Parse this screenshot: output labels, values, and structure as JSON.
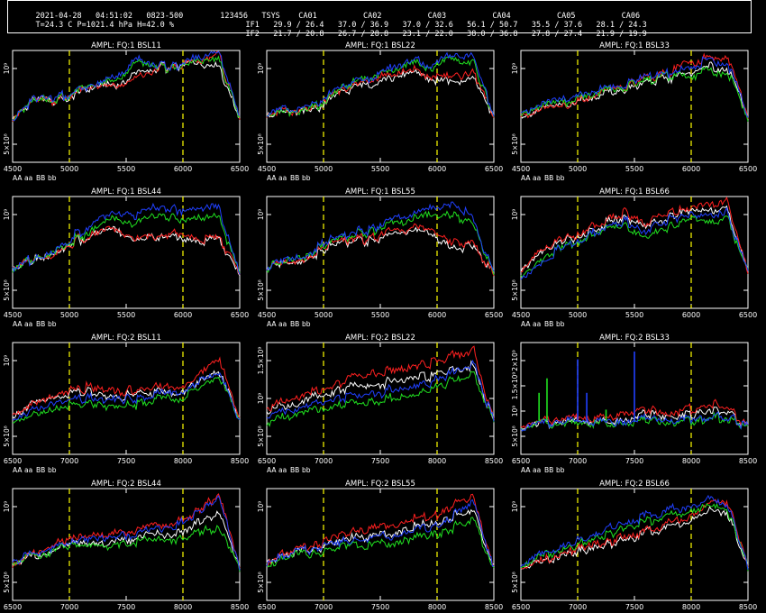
{
  "header": {
    "date": "2021-04-28",
    "time": "04:51:02",
    "scan": "0823-500",
    "id": "123456",
    "weather": "T=24.3 C P=1021.4 hPa H=42.0 %",
    "tsys_label": "TSYS",
    "antennas": [
      "CA01",
      "CA02",
      "CA03",
      "CA04",
      "CA05",
      "CA06"
    ],
    "if1_label": "IF1",
    "if1": [
      "29.9 / 26.4",
      "37.0 / 36.9",
      "37.0 / 32.6",
      "56.1 / 50.7",
      "35.5 / 37.6",
      "28.1 / 24.3"
    ],
    "if2_label": "IF2",
    "if2": [
      "21.7 / 20.8",
      "26.7 / 28.8",
      "23.1 / 22.0",
      "38.0 / 36.8",
      "27.8 / 27.4",
      "21.9 / 19.9"
    ]
  },
  "legend": [
    {
      "label": "AA",
      "color": "#ffffff"
    },
    {
      "label": "aa",
      "color": "#ff2020"
    },
    {
      "label": "BB",
      "color": "#20e020"
    },
    {
      "label": "bb",
      "color": "#2040ff"
    }
  ],
  "colors": {
    "AA": "#ffffff",
    "aa": "#ff2020",
    "BB": "#20e020",
    "bb": "#2040ff",
    "marker": "#ffff00",
    "axis": "#ffffff",
    "background": "#000000"
  },
  "chart_data": [
    {
      "type": "line",
      "title": "AMPL: FQ:1 BSL11",
      "xlim": [
        4500,
        6500
      ],
      "xticks": [
        "4500",
        "5000",
        "5500",
        "6000",
        "6500"
      ],
      "yticks": [
        "5×10⁸",
        "10⁹"
      ],
      "markers": [
        5000,
        6000
      ],
      "series": [
        {
          "name": "AA",
          "values": [
            0.4,
            0.55,
            0.55,
            0.6,
            0.7,
            0.7,
            0.8,
            0.85,
            0.85,
            0.9,
            0.85,
            0.4
          ]
        },
        {
          "name": "aa",
          "values": [
            0.4,
            0.55,
            0.55,
            0.62,
            0.7,
            0.7,
            0.75,
            0.85,
            0.85,
            0.92,
            0.95,
            0.4
          ]
        },
        {
          "name": "BB",
          "values": [
            0.4,
            0.55,
            0.55,
            0.62,
            0.72,
            0.75,
            0.9,
            0.88,
            0.82,
            0.92,
            0.9,
            0.4
          ]
        },
        {
          "name": "bb",
          "values": [
            0.4,
            0.55,
            0.58,
            0.62,
            0.72,
            0.78,
            0.92,
            0.88,
            0.85,
            0.95,
            0.98,
            0.4
          ]
        }
      ]
    },
    {
      "type": "line",
      "title": "AMPL: FQ:1 BSL22",
      "xlim": [
        4500,
        6500
      ],
      "xticks": [
        "4500",
        "5000",
        "5500",
        "6000",
        "6500"
      ],
      "yticks": [
        "5×10⁸",
        "10⁹"
      ],
      "markers": [
        5000,
        6000
      ],
      "series": [
        {
          "name": "AA",
          "values": [
            0.4,
            0.45,
            0.45,
            0.55,
            0.65,
            0.7,
            0.75,
            0.8,
            0.75,
            0.7,
            0.75,
            0.4
          ]
        },
        {
          "name": "aa",
          "values": [
            0.4,
            0.45,
            0.47,
            0.57,
            0.67,
            0.72,
            0.8,
            0.82,
            0.78,
            0.75,
            0.8,
            0.4
          ]
        },
        {
          "name": "BB",
          "values": [
            0.4,
            0.45,
            0.47,
            0.57,
            0.7,
            0.75,
            0.82,
            0.88,
            0.85,
            0.92,
            0.88,
            0.4
          ]
        },
        {
          "name": "bb",
          "values": [
            0.42,
            0.47,
            0.5,
            0.6,
            0.7,
            0.75,
            0.85,
            0.9,
            0.88,
            0.95,
            0.95,
            0.4
          ]
        }
      ]
    },
    {
      "type": "line",
      "title": "AMPL: FQ:1 BSL33",
      "xlim": [
        4500,
        6500
      ],
      "xticks": [
        "4500",
        "5000",
        "5500",
        "6000",
        "6500"
      ],
      "yticks": [
        "5×10⁸",
        "10⁹"
      ],
      "markers": [
        5000,
        6000
      ],
      "series": [
        {
          "name": "AA",
          "values": [
            0.4,
            0.45,
            0.5,
            0.55,
            0.6,
            0.65,
            0.7,
            0.75,
            0.8,
            0.85,
            0.85,
            0.4
          ]
        },
        {
          "name": "aa",
          "values": [
            0.4,
            0.45,
            0.5,
            0.55,
            0.62,
            0.68,
            0.75,
            0.8,
            0.9,
            0.92,
            0.97,
            0.4
          ]
        },
        {
          "name": "BB",
          "values": [
            0.42,
            0.48,
            0.53,
            0.58,
            0.62,
            0.68,
            0.72,
            0.78,
            0.78,
            0.8,
            0.82,
            0.4
          ]
        },
        {
          "name": "bb",
          "values": [
            0.43,
            0.5,
            0.55,
            0.6,
            0.65,
            0.7,
            0.75,
            0.8,
            0.85,
            0.9,
            0.9,
            0.4
          ]
        }
      ]
    },
    {
      "type": "line",
      "title": "AMPL: FQ:1 BSL44",
      "xlim": [
        4500,
        6500
      ],
      "xticks": [
        "4500",
        "5000",
        "5500",
        "6000",
        "6500"
      ],
      "yticks": [
        "5×10⁸",
        "10⁹"
      ],
      "markers": [
        5000,
        6000
      ],
      "series": [
        {
          "name": "AA",
          "values": [
            0.35,
            0.45,
            0.5,
            0.6,
            0.65,
            0.7,
            0.6,
            0.65,
            0.65,
            0.6,
            0.6,
            0.3
          ]
        },
        {
          "name": "aa",
          "values": [
            0.35,
            0.45,
            0.5,
            0.6,
            0.65,
            0.7,
            0.62,
            0.65,
            0.68,
            0.62,
            0.62,
            0.3
          ]
        },
        {
          "name": "BB",
          "values": [
            0.35,
            0.45,
            0.52,
            0.62,
            0.7,
            0.8,
            0.75,
            0.85,
            0.8,
            0.82,
            0.8,
            0.3
          ]
        },
        {
          "name": "bb",
          "values": [
            0.35,
            0.45,
            0.53,
            0.65,
            0.75,
            0.85,
            0.82,
            0.92,
            0.88,
            0.9,
            0.88,
            0.3
          ]
        }
      ]
    },
    {
      "type": "line",
      "title": "AMPL: FQ:1 BSL55",
      "xlim": [
        4500,
        6500
      ],
      "xticks": [
        "4500",
        "5000",
        "5500",
        "6000",
        "6500"
      ],
      "yticks": [
        "5×10⁸",
        "10⁹"
      ],
      "markers": [
        5000,
        6000
      ],
      "series": [
        {
          "name": "AA",
          "values": [
            0.35,
            0.4,
            0.45,
            0.55,
            0.6,
            0.6,
            0.65,
            0.7,
            0.65,
            0.55,
            0.55,
            0.3
          ]
        },
        {
          "name": "aa",
          "values": [
            0.35,
            0.4,
            0.46,
            0.56,
            0.62,
            0.62,
            0.68,
            0.72,
            0.68,
            0.6,
            0.58,
            0.3
          ]
        },
        {
          "name": "BB",
          "values": [
            0.35,
            0.42,
            0.48,
            0.58,
            0.65,
            0.68,
            0.75,
            0.8,
            0.82,
            0.85,
            0.75,
            0.3
          ]
        },
        {
          "name": "bb",
          "values": [
            0.36,
            0.43,
            0.5,
            0.6,
            0.67,
            0.7,
            0.78,
            0.85,
            0.88,
            0.95,
            0.8,
            0.3
          ]
        }
      ]
    },
    {
      "type": "line",
      "title": "AMPL: FQ:1 BSL66",
      "xlim": [
        4500,
        6500
      ],
      "xticks": [
        "4500",
        "5000",
        "5500",
        "6000",
        "6500"
      ],
      "yticks": [
        "5×10⁸",
        "10⁹"
      ],
      "markers": [
        5000,
        6000
      ],
      "series": [
        {
          "name": "AA",
          "values": [
            0.35,
            0.5,
            0.6,
            0.65,
            0.75,
            0.82,
            0.75,
            0.8,
            0.85,
            0.9,
            0.88,
            0.3
          ]
        },
        {
          "name": "aa",
          "values": [
            0.35,
            0.52,
            0.62,
            0.68,
            0.78,
            0.85,
            0.78,
            0.85,
            0.88,
            0.95,
            0.95,
            0.3
          ]
        },
        {
          "name": "BB",
          "values": [
            0.3,
            0.42,
            0.55,
            0.6,
            0.7,
            0.75,
            0.65,
            0.72,
            0.78,
            0.8,
            0.8,
            0.3
          ]
        },
        {
          "name": "bb",
          "values": [
            0.28,
            0.4,
            0.55,
            0.62,
            0.72,
            0.78,
            0.7,
            0.78,
            0.82,
            0.85,
            0.85,
            0.3
          ]
        }
      ]
    },
    {
      "type": "line",
      "title": "AMPL: FQ:2 BSL11",
      "xlim": [
        6500,
        8500
      ],
      "xticks": [
        "6500",
        "7000",
        "7500",
        "8000",
        "8500"
      ],
      "yticks": [
        "5×10⁸",
        "10⁹"
      ],
      "markers": [
        7000,
        8000
      ],
      "series": [
        {
          "name": "AA",
          "values": [
            0.35,
            0.45,
            0.5,
            0.55,
            0.55,
            0.5,
            0.55,
            0.55,
            0.55,
            0.65,
            0.75,
            0.3
          ]
        },
        {
          "name": "aa",
          "values": [
            0.35,
            0.45,
            0.52,
            0.58,
            0.6,
            0.55,
            0.58,
            0.6,
            0.6,
            0.7,
            0.88,
            0.3
          ]
        },
        {
          "name": "BB",
          "values": [
            0.3,
            0.35,
            0.4,
            0.45,
            0.45,
            0.42,
            0.45,
            0.5,
            0.5,
            0.6,
            0.7,
            0.3
          ]
        },
        {
          "name": "bb",
          "values": [
            0.32,
            0.4,
            0.45,
            0.5,
            0.5,
            0.48,
            0.5,
            0.55,
            0.55,
            0.65,
            0.75,
            0.3
          ]
        }
      ]
    },
    {
      "type": "line",
      "title": "AMPL: FQ:2 BSL22",
      "xlim": [
        6500,
        8500
      ],
      "xticks": [
        "6500",
        "7000",
        "7500",
        "8000",
        "8500"
      ],
      "yticks": [
        "5×10⁸",
        "10⁹",
        "1.5×10⁹"
      ],
      "markers": [
        7000,
        8000
      ],
      "series": [
        {
          "name": "AA",
          "values": [
            0.4,
            0.45,
            0.5,
            0.55,
            0.6,
            0.6,
            0.65,
            0.7,
            0.7,
            0.75,
            0.8,
            0.3
          ]
        },
        {
          "name": "aa",
          "values": [
            0.42,
            0.5,
            0.55,
            0.6,
            0.68,
            0.7,
            0.75,
            0.8,
            0.82,
            0.88,
            0.95,
            0.3
          ]
        },
        {
          "name": "BB",
          "values": [
            0.3,
            0.35,
            0.4,
            0.42,
            0.45,
            0.45,
            0.5,
            0.55,
            0.58,
            0.65,
            0.72,
            0.3
          ]
        },
        {
          "name": "bb",
          "values": [
            0.35,
            0.4,
            0.45,
            0.48,
            0.52,
            0.52,
            0.58,
            0.62,
            0.65,
            0.72,
            0.82,
            0.3
          ]
        }
      ]
    },
    {
      "type": "line",
      "title": "AMPL: FQ:2 BSL33",
      "xlim": [
        6500,
        8500
      ],
      "xticks": [
        "6500",
        "7000",
        "7500",
        "8000",
        "8500"
      ],
      "yticks": [
        "5×10⁸",
        "10⁹",
        "1.5×10⁹",
        "2×10⁹"
      ],
      "markers": [
        7000,
        8000
      ],
      "series": [
        {
          "name": "AA",
          "values": [
            0.25,
            0.28,
            0.3,
            0.3,
            0.3,
            0.32,
            0.35,
            0.35,
            0.35,
            0.4,
            0.38,
            0.25
          ]
        },
        {
          "name": "aa",
          "values": [
            0.25,
            0.3,
            0.32,
            0.32,
            0.33,
            0.38,
            0.4,
            0.38,
            0.4,
            0.45,
            0.42,
            0.25
          ]
        },
        {
          "name": "BB",
          "values": [
            0.25,
            0.28,
            0.28,
            0.28,
            0.28,
            0.28,
            0.3,
            0.3,
            0.3,
            0.32,
            0.32,
            0.25
          ]
        },
        {
          "name": "bb",
          "values": [
            0.25,
            0.28,
            0.3,
            0.3,
            0.3,
            0.3,
            0.32,
            0.32,
            0.32,
            0.34,
            0.34,
            0.25
          ]
        }
      ]
    },
    {
      "type": "line",
      "title": "AMPL: FQ:2 BSL44",
      "xlim": [
        6500,
        8500
      ],
      "xticks": [
        "6500",
        "7000",
        "7500",
        "8000",
        "8500"
      ],
      "yticks": [
        "5×10⁸",
        "10⁹"
      ],
      "markers": [
        7000,
        8000
      ],
      "series": [
        {
          "name": "AA",
          "values": [
            0.3,
            0.4,
            0.45,
            0.5,
            0.5,
            0.55,
            0.55,
            0.6,
            0.6,
            0.7,
            0.78,
            0.3
          ]
        },
        {
          "name": "aa",
          "values": [
            0.3,
            0.42,
            0.5,
            0.55,
            0.58,
            0.62,
            0.62,
            0.68,
            0.7,
            0.8,
            0.95,
            0.3
          ]
        },
        {
          "name": "BB",
          "values": [
            0.3,
            0.4,
            0.45,
            0.48,
            0.5,
            0.5,
            0.52,
            0.55,
            0.55,
            0.6,
            0.65,
            0.3
          ]
        },
        {
          "name": "bb",
          "values": [
            0.32,
            0.42,
            0.48,
            0.52,
            0.55,
            0.58,
            0.6,
            0.65,
            0.68,
            0.78,
            0.92,
            0.3
          ]
        }
      ]
    },
    {
      "type": "line",
      "title": "AMPL: FQ:2 BSL55",
      "xlim": [
        6500,
        8500
      ],
      "xticks": [
        "6500",
        "7000",
        "7500",
        "8000",
        "8500"
      ],
      "yticks": [
        "5×10⁸",
        "10⁹"
      ],
      "markers": [
        7000,
        8000
      ],
      "series": [
        {
          "name": "AA",
          "values": [
            0.35,
            0.4,
            0.45,
            0.5,
            0.55,
            0.58,
            0.6,
            0.65,
            0.68,
            0.75,
            0.8,
            0.3
          ]
        },
        {
          "name": "aa",
          "values": [
            0.35,
            0.42,
            0.48,
            0.55,
            0.6,
            0.65,
            0.68,
            0.72,
            0.75,
            0.85,
            0.92,
            0.3
          ]
        },
        {
          "name": "BB",
          "values": [
            0.33,
            0.38,
            0.42,
            0.45,
            0.48,
            0.5,
            0.52,
            0.55,
            0.58,
            0.65,
            0.72,
            0.3
          ]
        },
        {
          "name": "bb",
          "values": [
            0.34,
            0.4,
            0.45,
            0.5,
            0.52,
            0.55,
            0.58,
            0.62,
            0.65,
            0.75,
            0.88,
            0.3
          ]
        }
      ]
    },
    {
      "type": "line",
      "title": "AMPL: FQ:2 BSL66",
      "xlim": [
        6500,
        8500
      ],
      "xticks": [
        "6500",
        "7000",
        "7500",
        "8000",
        "8500"
      ],
      "yticks": [
        "5×10⁸",
        "10⁹"
      ],
      "markers": [
        7000,
        8000
      ],
      "series": [
        {
          "name": "AA",
          "values": [
            0.3,
            0.35,
            0.4,
            0.45,
            0.5,
            0.55,
            0.6,
            0.65,
            0.72,
            0.8,
            0.78,
            0.3
          ]
        },
        {
          "name": "aa",
          "values": [
            0.3,
            0.36,
            0.42,
            0.48,
            0.52,
            0.58,
            0.62,
            0.68,
            0.75,
            0.85,
            0.88,
            0.3
          ]
        },
        {
          "name": "BB",
          "values": [
            0.32,
            0.4,
            0.45,
            0.52,
            0.58,
            0.65,
            0.7,
            0.75,
            0.8,
            0.85,
            0.8,
            0.3
          ]
        },
        {
          "name": "bb",
          "values": [
            0.33,
            0.42,
            0.48,
            0.55,
            0.62,
            0.7,
            0.75,
            0.8,
            0.85,
            0.9,
            0.85,
            0.3
          ]
        }
      ]
    }
  ]
}
